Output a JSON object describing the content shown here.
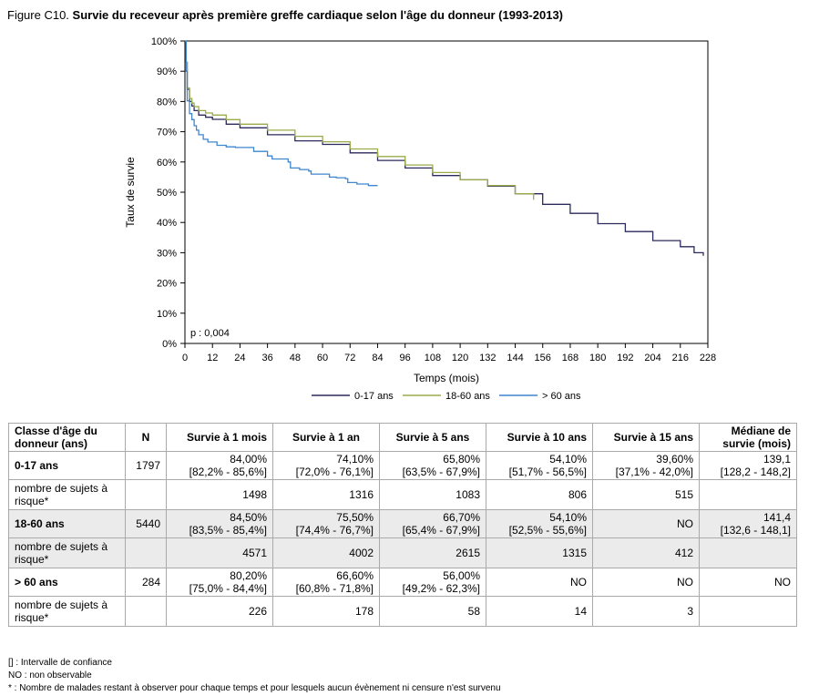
{
  "figure": {
    "prefix": "Figure C10.",
    "title": "Survie du receveur après première greffe cardiaque selon l'âge du donneur (1993-2013)"
  },
  "chart_data": {
    "type": "line",
    "xlabel": "Temps (mois)",
    "ylabel": "Taux de survie",
    "xlim": [
      0,
      228
    ],
    "ylim": [
      0,
      100
    ],
    "x_ticks": [
      0,
      12,
      24,
      36,
      48,
      60,
      72,
      84,
      96,
      108,
      120,
      132,
      144,
      156,
      168,
      180,
      192,
      204,
      216,
      228
    ],
    "y_ticks": [
      "0%",
      "10%",
      "20%",
      "30%",
      "40%",
      "50%",
      "60%",
      "70%",
      "80%",
      "90%",
      "100%"
    ],
    "y_tick_values": [
      0,
      10,
      20,
      30,
      40,
      50,
      60,
      70,
      80,
      90,
      100
    ],
    "annotation": "p : 0,004",
    "grid": false,
    "legend_position": "bottom",
    "series": [
      {
        "name": "0-17 ans",
        "color": "#2b2a5c",
        "x": [
          0,
          0.5,
          1,
          2,
          3,
          4,
          6,
          9,
          12,
          18,
          24,
          36,
          48,
          60,
          72,
          84,
          96,
          108,
          120,
          132,
          144,
          156,
          168,
          180,
          192,
          204,
          216,
          222,
          226
        ],
        "y": [
          100,
          93,
          84,
          80,
          78.5,
          77,
          75.5,
          74.8,
          74.1,
          72.5,
          71.3,
          69,
          67,
          65.8,
          63,
          60.5,
          58,
          55.5,
          54.1,
          52,
          49.5,
          46,
          43,
          39.6,
          37,
          34,
          32,
          30,
          29
        ]
      },
      {
        "name": "18-60 ans",
        "color": "#9aab4a",
        "x": [
          0,
          0.5,
          1,
          2,
          3,
          4,
          6,
          9,
          12,
          18,
          24,
          36,
          48,
          60,
          72,
          84,
          96,
          108,
          120,
          132,
          144,
          152
        ],
        "y": [
          100,
          93,
          84.5,
          81,
          79.5,
          78.3,
          77,
          76.2,
          75.5,
          74,
          72.5,
          70.5,
          68.5,
          66.7,
          64.3,
          61.8,
          59,
          56.5,
          54.1,
          52.2,
          49.5,
          47.5
        ]
      },
      {
        "name": "> 60 ans",
        "color": "#3f86cf",
        "x": [
          0,
          0.5,
          1,
          2,
          3,
          4,
          5,
          6,
          8,
          10,
          12,
          14,
          18,
          22,
          25,
          30,
          36,
          38,
          45,
          46,
          50,
          54,
          55,
          62,
          63,
          66,
          70,
          71,
          75,
          80,
          84
        ],
        "y": [
          100,
          90,
          80.2,
          76,
          74,
          72,
          70.5,
          69,
          67.5,
          66.6,
          66.6,
          65.5,
          65,
          64.8,
          64.8,
          63.5,
          62,
          61,
          60,
          58,
          57.5,
          57,
          56,
          56,
          55,
          54.8,
          54.5,
          53.2,
          52.7,
          52.2,
          52.2
        ]
      }
    ]
  },
  "table": {
    "headers": [
      "Classe d'âge du donneur (ans)",
      "N",
      "Survie à 1 mois",
      "Survie à 1 an",
      "Survie à 5 ans",
      "Survie à 10 ans",
      "Survie à 15 ans",
      "Médiane de survie (mois)"
    ],
    "groups": [
      {
        "label": "0-17 ans",
        "n": "1797",
        "values": [
          "84,00%",
          "74,10%",
          "65,80%",
          "54,10%",
          "39,60%",
          "139,1"
        ],
        "ci": [
          "[82,2% - 85,6%]",
          "[72,0% - 76,1%]",
          "[63,5% - 67,9%]",
          "[51,7% - 56,5%]",
          "[37,1% - 42,0%]",
          "[128,2 - 148,2]"
        ],
        "risk_label": "nombre de sujets à risque*",
        "risk": [
          "1498",
          "1316",
          "1083",
          "806",
          "515",
          ""
        ]
      },
      {
        "label": "18-60 ans",
        "n": "5440",
        "values": [
          "84,50%",
          "75,50%",
          "66,70%",
          "54,10%",
          "NO",
          "141,4"
        ],
        "ci": [
          "[83,5% - 85,4%]",
          "[74,4% - 76,7%]",
          "[65,4% - 67,9%]",
          "[52,5% - 55,6%]",
          "",
          "[132,6 - 148,1]"
        ],
        "risk_label": "nombre de sujets à risque*",
        "risk": [
          "4571",
          "4002",
          "2615",
          "1315",
          "412",
          ""
        ]
      },
      {
        "label": "> 60 ans",
        "n": "284",
        "values": [
          "80,20%",
          "66,60%",
          "56,00%",
          "NO",
          "NO",
          "NO"
        ],
        "ci": [
          "[75,0% - 84,4%]",
          "[60,8% - 71,8%]",
          "[49,2% - 62,3%]",
          "",
          "",
          ""
        ],
        "risk_label": "nombre de sujets à risque*",
        "risk": [
          "226",
          "178",
          "58",
          "14",
          "3",
          ""
        ]
      }
    ]
  },
  "footnotes": [
    "[] : Intervalle de confiance",
    "NO : non observable",
    "* : Nombre de malades restant à observer pour chaque temps et pour lesquels aucun évènement ni censure n'est survenu"
  ]
}
